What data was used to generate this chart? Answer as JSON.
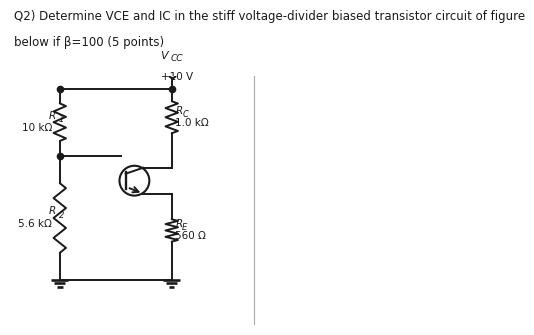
{
  "title_line1": "Q2) Determine VCE and IC in the stiff voltage-divider biased transistor circuit of figure",
  "title_line2": "below if β=100 (5 points)",
  "vcc_label": "V",
  "vcc_sub": "CC",
  "vcc_value": "+10 V",
  "R1_label": "R",
  "R1_sub": "1",
  "R1_value": "10 kΩ",
  "R2_label": "R",
  "R2_sub": "2",
  "R2_value": "5.6 kΩ",
  "RC_label": "R",
  "RC_sub": "C",
  "RC_value": "1.0 kΩ",
  "RE_label": "R",
  "RE_sub": "E",
  "RE_value": "560 Ω",
  "bg_color": "#ffffff",
  "line_color": "#1a1a1a",
  "text_color": "#1a1a1a",
  "font_size_title": 8.5,
  "font_size_circuit": 7.5
}
